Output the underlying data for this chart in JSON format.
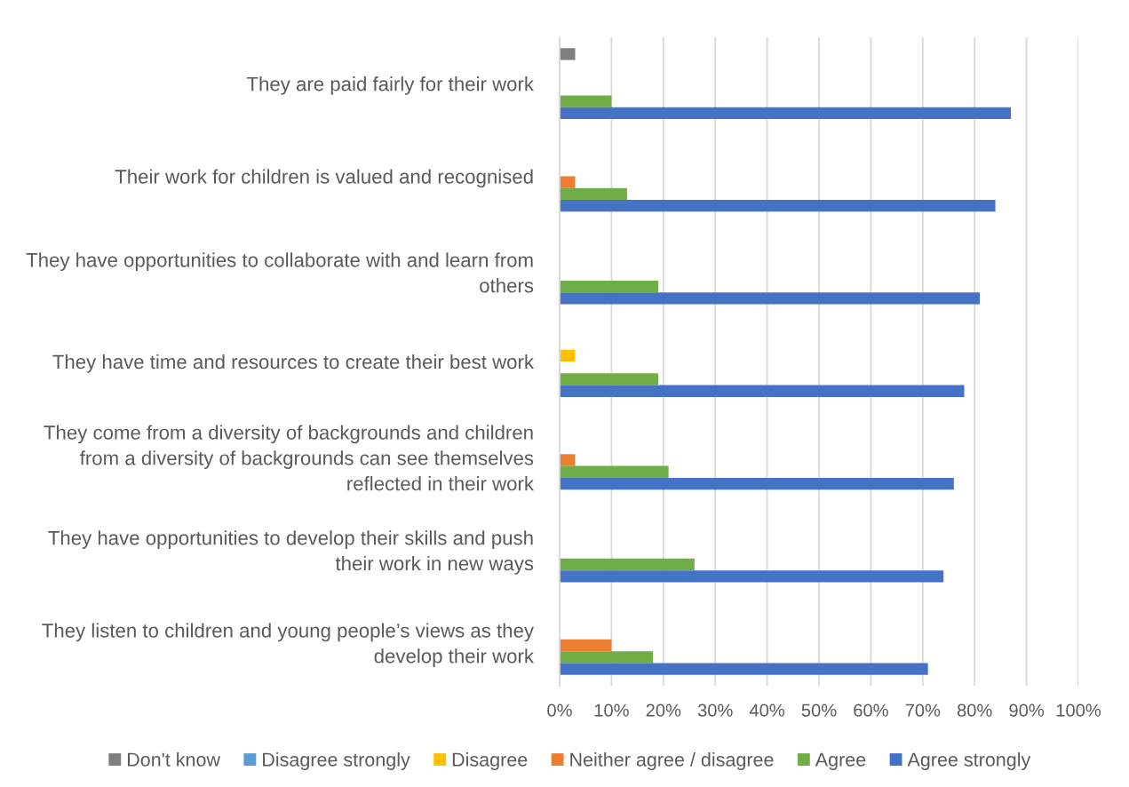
{
  "chart_data": {
    "type": "bar",
    "orientation": "horizontal",
    "categories": [
      "They are paid fairly for their work",
      "Their work for children is valued and recognised",
      "They have opportunities to collaborate with and learn from others",
      "They have time and resources to create their best work",
      "They come from a diversity of backgrounds and children from a diversity of backgrounds can see themselves reflected in their work",
      "They have opportunities to develop their skills and push their work in new ways",
      "They listen to children and young people’s views as they develop their work"
    ],
    "series": [
      {
        "name": "Don't know",
        "color": "#7f7f7f",
        "values": [
          3,
          null,
          null,
          null,
          null,
          null,
          null
        ]
      },
      {
        "name": "Disagree strongly",
        "color": "#5b9bd5",
        "values": [
          null,
          null,
          null,
          null,
          null,
          null,
          null
        ]
      },
      {
        "name": "Disagree",
        "color": "#ffc000",
        "values": [
          null,
          null,
          null,
          3,
          null,
          null,
          null
        ]
      },
      {
        "name": "Neither agree / disagree",
        "color": "#ed7d31",
        "values": [
          null,
          3,
          null,
          null,
          3,
          null,
          10
        ]
      },
      {
        "name": "Agree",
        "color": "#70ad47",
        "values": [
          10,
          13,
          19,
          19,
          21,
          26,
          18
        ]
      },
      {
        "name": "Agree strongly",
        "color": "#4472c4",
        "values": [
          87,
          84,
          81,
          78,
          76,
          74,
          71
        ]
      }
    ],
    "xlim": [
      0,
      100
    ],
    "xticks": [
      {
        "value": 0,
        "label": "0%"
      },
      {
        "value": 10,
        "label": "10%"
      },
      {
        "value": 20,
        "label": "20%"
      },
      {
        "value": 30,
        "label": "30%"
      },
      {
        "value": 40,
        "label": "40%"
      },
      {
        "value": 50,
        "label": "50%"
      },
      {
        "value": 60,
        "label": "60%"
      },
      {
        "value": 70,
        "label": "70%"
      },
      {
        "value": 80,
        "label": "80%"
      },
      {
        "value": 90,
        "label": "90%"
      },
      {
        "value": 100,
        "label": "100%"
      }
    ],
    "grid": "x",
    "legend": "bottom"
  }
}
